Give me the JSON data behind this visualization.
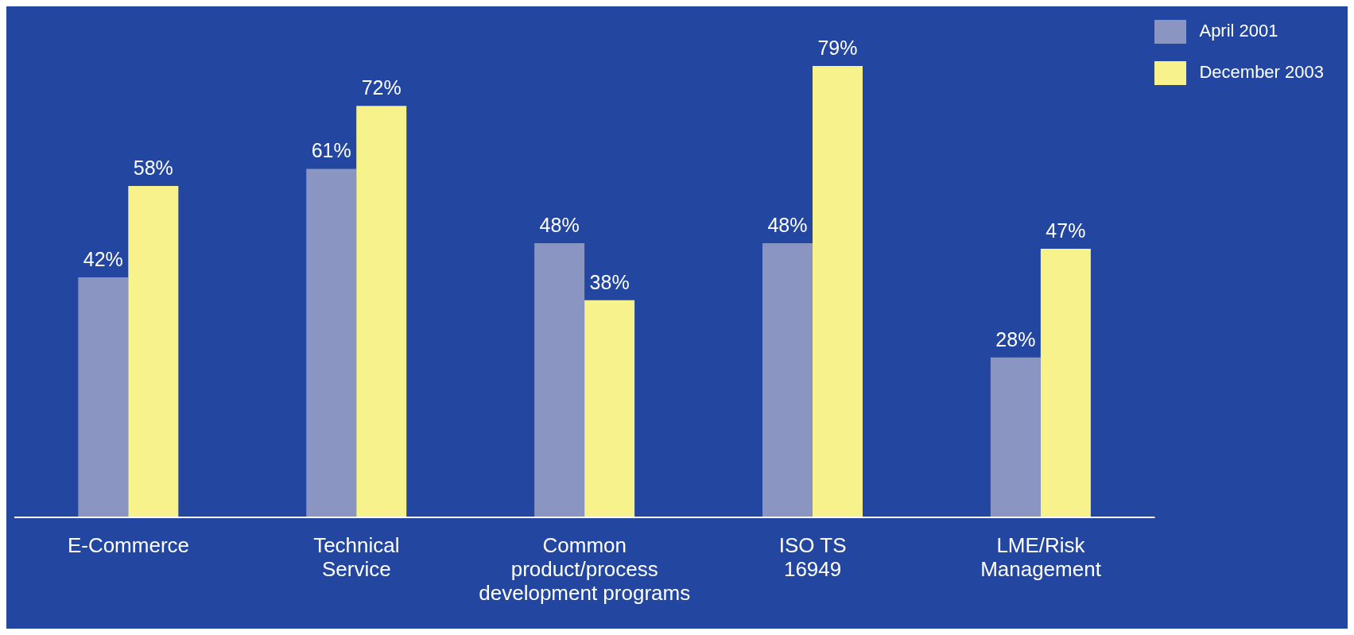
{
  "chart_data": {
    "type": "bar",
    "categories": [
      "E-Commerce",
      "Technical\nService",
      "Common\nproduct/process\ndevelopment programs",
      "ISO TS\n16949",
      "LME/Risk\nManagement"
    ],
    "series": [
      {
        "name": "April 2001",
        "color": "#8a95c2",
        "values": [
          42,
          61,
          48,
          48,
          28
        ],
        "value_labels": [
          "42%",
          "61%",
          "48%",
          "48%",
          "28%"
        ]
      },
      {
        "name": "December 2003",
        "color": "#f7f28c",
        "values": [
          58,
          72,
          38,
          79,
          47
        ],
        "value_labels": [
          "58%",
          "72%",
          "38%",
          "79%",
          "47%"
        ]
      }
    ],
    "legend": "top right",
    "grid": false
  }
}
